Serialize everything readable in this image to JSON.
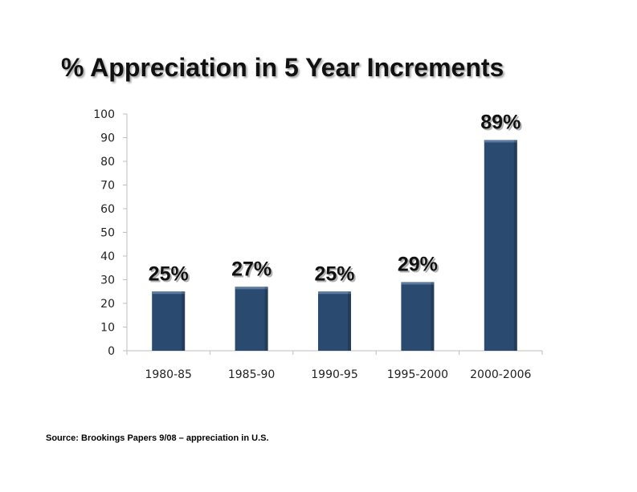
{
  "slide": {
    "title": "% Appreciation in 5 Year Increments",
    "source": "Source: Brookings Papers 9/08 – appreciation in U.S."
  },
  "chart_data": {
    "type": "bar",
    "title": "% Appreciation in 5 Year Increments",
    "xlabel": "",
    "ylabel": "",
    "categories": [
      "1980-85",
      "1985-90",
      "1990-95",
      "1995-2000",
      "2000-2006"
    ],
    "values": [
      25,
      27,
      25,
      29,
      89
    ],
    "data_labels": [
      "25%",
      "27%",
      "25%",
      "29%",
      "89%"
    ],
    "ylim": [
      0,
      100
    ],
    "yticks": [
      "0",
      "10",
      "20",
      "30",
      "40",
      "50",
      "60",
      "70",
      "80",
      "90",
      "100"
    ],
    "grid": false,
    "legend": "none",
    "bar_color": "#2b4a6f",
    "bar_highlight": "#5b7aa0"
  }
}
